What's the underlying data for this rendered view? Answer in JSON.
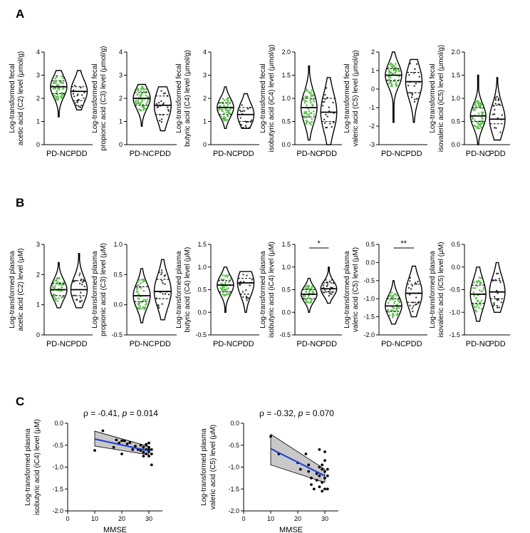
{
  "panel_labels": [
    "A",
    "B",
    "C"
  ],
  "colors": {
    "pdnc_dots": "#5bbf4a",
    "pdd_dots": "#333333",
    "regression": "#1f3fd6",
    "ci_band": "#c8c8c8"
  },
  "chart_data": [
    {
      "id": "A1",
      "type": "violin",
      "ylabel_lines": [
        "Log-transformed fecal",
        "acetic acid (C2) level (μmol/g)"
      ],
      "categories": [
        "PD-NC",
        "PDD"
      ],
      "ylim": [
        0,
        4
      ],
      "yticks": [
        0,
        1,
        2,
        3,
        4
      ],
      "tick_labels": [
        "0",
        "1",
        "2",
        "3",
        "4"
      ],
      "series": [
        {
          "name": "PD-NC",
          "min": 1.2,
          "max": 3.2,
          "q1": 2.2,
          "median": 2.5,
          "q3": 2.75,
          "n": 60
        },
        {
          "name": "PDD",
          "min": 1.5,
          "max": 3.2,
          "q1": 1.9,
          "median": 2.3,
          "q3": 2.5,
          "n": 20
        }
      ]
    },
    {
      "id": "A2",
      "type": "violin",
      "ylabel_lines": [
        "Log-transformed fecal",
        "propionic acid (C3) level (μmol/g)"
      ],
      "categories": [
        "PD-NC",
        "PDD"
      ],
      "ylim": [
        0,
        4
      ],
      "yticks": [
        0,
        1,
        2,
        3,
        4
      ],
      "tick_labels": [
        "0",
        "1",
        "2",
        "3",
        "4"
      ],
      "series": [
        {
          "name": "PD-NC",
          "min": 0.8,
          "max": 2.6,
          "q1": 1.7,
          "median": 2.0,
          "q3": 2.25,
          "n": 60
        },
        {
          "name": "PDD",
          "min": 0.6,
          "max": 2.5,
          "q1": 1.3,
          "median": 1.7,
          "q3": 2.1,
          "n": 20
        }
      ]
    },
    {
      "id": "A3",
      "type": "violin",
      "ylabel_lines": [
        "Log-transformed fecal",
        "butyric acid (C4) level (μmol/g)"
      ],
      "categories": [
        "PD-NC",
        "PDD"
      ],
      "ylim": [
        0,
        4
      ],
      "yticks": [
        0,
        1,
        2,
        3,
        4
      ],
      "tick_labels": [
        "0",
        "1",
        "2",
        "3",
        "4"
      ],
      "series": [
        {
          "name": "PD-NC",
          "min": 0.7,
          "max": 2.5,
          "q1": 1.3,
          "median": 1.6,
          "q3": 1.8,
          "n": 60
        },
        {
          "name": "PDD",
          "min": 0.7,
          "max": 2.2,
          "q1": 1.0,
          "median": 1.3,
          "q3": 1.6,
          "n": 20
        }
      ]
    },
    {
      "id": "A4",
      "type": "violin",
      "ylabel_lines": [
        "Log-transformed fecal",
        "isobutyric acid (iC4) level (μmol/g)"
      ],
      "categories": [
        "PD-NC",
        "PDD"
      ],
      "ylim": [
        0,
        2.0
      ],
      "yticks": [
        0,
        0.5,
        1.0,
        1.5,
        2.0
      ],
      "tick_labels": [
        "0.0",
        "0.5",
        "1.0",
        "1.5",
        "2.0"
      ],
      "series": [
        {
          "name": "PD-NC",
          "min": 0.1,
          "max": 1.7,
          "q1": 0.6,
          "median": 0.8,
          "q3": 1.0,
          "n": 60
        },
        {
          "name": "PDD",
          "min": 0.0,
          "max": 1.45,
          "q1": 0.5,
          "median": 0.7,
          "q3": 1.0,
          "n": 20
        }
      ]
    },
    {
      "id": "A5",
      "type": "violin",
      "ylabel_lines": [
        "Log-transformed fecal",
        "valeric acid (C5) level (μmol/g)"
      ],
      "categories": [
        "PD-NC",
        "PDD"
      ],
      "ylim": [
        -3,
        2
      ],
      "yticks": [
        -3,
        -2,
        -1,
        0,
        1,
        2
      ],
      "tick_labels": [
        "-3",
        "-2",
        "-1",
        "0",
        "1",
        "2"
      ],
      "series": [
        {
          "name": "PD-NC",
          "min": -1.8,
          "max": 2.0,
          "q1": 0.45,
          "median": 0.75,
          "q3": 1.1,
          "n": 60
        },
        {
          "name": "PDD",
          "min": -1.8,
          "max": 1.6,
          "q1": -0.2,
          "median": 0.4,
          "q3": 0.9,
          "n": 20
        }
      ]
    },
    {
      "id": "A6",
      "type": "violin",
      "ylabel_lines": [
        "Log-transformed fecal",
        "isovaleric acid (iC5) level (μmol/g)"
      ],
      "categories": [
        "PD-NC",
        "PDD"
      ],
      "ylim": [
        0,
        2.0
      ],
      "yticks": [
        0,
        0.5,
        1.0,
        1.5,
        2.0
      ],
      "tick_labels": [
        "0.0",
        "0.5",
        "1.0",
        "1.5",
        "2.0"
      ],
      "series": [
        {
          "name": "PD-NC",
          "min": 0.0,
          "max": 1.5,
          "q1": 0.5,
          "median": 0.62,
          "q3": 0.8,
          "n": 60
        },
        {
          "name": "PDD",
          "min": 0.1,
          "max": 1.45,
          "q1": 0.45,
          "median": 0.55,
          "q3": 0.85,
          "n": 20
        }
      ]
    },
    {
      "id": "B1",
      "type": "violin",
      "ylabel_lines": [
        "Log-transformed plasma",
        "acetic acid (C2) level (μM)"
      ],
      "categories": [
        "PD-NC",
        "PDD"
      ],
      "ylim": [
        0,
        3
      ],
      "yticks": [
        0,
        1,
        2,
        3
      ],
      "tick_labels": [
        "0",
        "1",
        "2",
        "3"
      ],
      "series": [
        {
          "name": "PD-NC",
          "min": 0.9,
          "max": 2.4,
          "q1": 1.3,
          "median": 1.5,
          "q3": 1.7,
          "n": 45
        },
        {
          "name": "PDD",
          "min": 0.9,
          "max": 2.7,
          "q1": 1.3,
          "median": 1.5,
          "q3": 1.8,
          "n": 20
        }
      ]
    },
    {
      "id": "B2",
      "type": "violin",
      "ylabel_lines": [
        "Log-transformed plasma",
        "propionic acid (C3) level (μM)"
      ],
      "categories": [
        "PD-NC",
        "PDD"
      ],
      "ylim": [
        -0.5,
        1.0
      ],
      "yticks": [
        -0.5,
        0,
        0.5,
        1.0
      ],
      "tick_labels": [
        "-0.5",
        "0.0",
        "0.5",
        "1.0"
      ],
      "series": [
        {
          "name": "PD-NC",
          "min": -0.3,
          "max": 0.6,
          "q1": 0.05,
          "median": 0.15,
          "q3": 0.3,
          "n": 45
        },
        {
          "name": "PDD",
          "min": -0.25,
          "max": 0.75,
          "q1": 0.1,
          "median": 0.22,
          "q3": 0.42,
          "n": 20
        }
      ]
    },
    {
      "id": "B3",
      "type": "violin",
      "ylabel_lines": [
        "Log-transformed plasma",
        "butyric acid (C4) level (μM)"
      ],
      "categories": [
        "PD-NC",
        "PDD"
      ],
      "ylim": [
        -0.5,
        1.5
      ],
      "yticks": [
        -0.5,
        0,
        0.5,
        1.0,
        1.5
      ],
      "tick_labels": [
        "-0.5",
        "0.0",
        "0.5",
        "1.0",
        "1.5"
      ],
      "series": [
        {
          "name": "PD-NC",
          "min": 0.0,
          "max": 1.0,
          "q1": 0.45,
          "median": 0.6,
          "q3": 0.7,
          "n": 45
        },
        {
          "name": "PDD",
          "min": 0.0,
          "max": 0.9,
          "q1": 0.4,
          "median": 0.65,
          "q3": 0.75,
          "n": 20
        }
      ]
    },
    {
      "id": "B4",
      "type": "violin",
      "ylabel_lines": [
        "Log-transformed plasma",
        "isobutyric acid (iC4) level (μM)"
      ],
      "categories": [
        "PD-NC",
        "PDD"
      ],
      "ylim": [
        -0.5,
        1.5
      ],
      "yticks": [
        -0.5,
        0,
        0.5,
        1.0,
        1.5
      ],
      "tick_labels": [
        "-0.5",
        "0.0",
        "0.5",
        "1.0",
        "1.5"
      ],
      "significance": "*",
      "series": [
        {
          "name": "PD-NC",
          "min": 0.0,
          "max": 0.75,
          "q1": 0.3,
          "median": 0.4,
          "q3": 0.5,
          "n": 45
        },
        {
          "name": "PDD",
          "min": 0.2,
          "max": 1.0,
          "q1": 0.45,
          "median": 0.52,
          "q3": 0.65,
          "n": 20
        }
      ]
    },
    {
      "id": "B5",
      "type": "violin",
      "ylabel_lines": [
        "Log-transformed plasma",
        "valeric acid (C5) level (μM)"
      ],
      "categories": [
        "PD-NC",
        "PDD"
      ],
      "ylim": [
        -2.0,
        0.5
      ],
      "yticks": [
        -2.0,
        -1.5,
        -1.0,
        -0.5,
        0,
        0.5
      ],
      "tick_labels": [
        "-2.0",
        "-1.5",
        "-1.0",
        "-0.5",
        "0.0",
        "0.5"
      ],
      "significance": "**",
      "series": [
        {
          "name": "PD-NC",
          "min": -1.7,
          "max": -0.5,
          "q1": -1.35,
          "median": -1.2,
          "q3": -1.0,
          "n": 45
        },
        {
          "name": "PDD",
          "min": -1.5,
          "max": -0.1,
          "q1": -1.1,
          "median": -0.85,
          "q3": -0.6,
          "n": 20
        }
      ]
    },
    {
      "id": "B6",
      "type": "violin",
      "ylabel_lines": [
        "Log-transformed plasma",
        "isovaleric acid (iC5) level (μM)"
      ],
      "categories": [
        "PD-NC",
        "PDD"
      ],
      "ylim": [
        -1.5,
        0.5
      ],
      "yticks": [
        -1.5,
        -1.0,
        -0.5,
        0,
        0.5
      ],
      "tick_labels": [
        "-1.5",
        "-1.0",
        "-0.5",
        "0.0",
        "0.5"
      ],
      "series": [
        {
          "name": "PD-NC",
          "min": -1.2,
          "max": 0.0,
          "q1": -0.8,
          "median": -0.6,
          "q3": -0.4,
          "n": 45
        },
        {
          "name": "PDD",
          "min": -1.0,
          "max": 0.1,
          "q1": -0.7,
          "median": -0.55,
          "q3": -0.3,
          "n": 20
        }
      ]
    },
    {
      "id": "C1",
      "type": "scatter",
      "stats_prefix": "ρ = -0.41, ",
      "p_label": "p",
      "stats_suffix": " = 0.014",
      "ylabel_lines": [
        "Log-transformed plasma",
        "isobutyric acid (iC4) level (μM)"
      ],
      "xlabel": "MMSE",
      "xlim": [
        0,
        35
      ],
      "xticks": [
        0,
        10,
        20,
        30
      ],
      "ylim": [
        -2.0,
        0.0
      ],
      "yticks": [
        -2.0,
        -1.5,
        -1.0,
        -0.5,
        0.0
      ],
      "tick_labels": [
        "-2.0",
        "-1.5",
        "-1.0",
        "-0.5",
        "0.0"
      ],
      "fit": {
        "x0": 10,
        "y0": -0.36,
        "x1": 30,
        "y1": -0.63
      },
      "ci": {
        "lo0": -0.52,
        "hi0": -0.18,
        "lo1": -0.72,
        "hi1": -0.53
      },
      "points": [
        [
          10,
          -0.62
        ],
        [
          13,
          -0.17
        ],
        [
          18,
          -0.38
        ],
        [
          19,
          -0.45
        ],
        [
          20,
          -0.4
        ],
        [
          21,
          -0.4
        ],
        [
          22,
          -0.47
        ],
        [
          23,
          -0.44
        ],
        [
          24,
          -0.6
        ],
        [
          25,
          -0.52
        ],
        [
          26,
          -0.6
        ],
        [
          27,
          -0.5
        ],
        [
          27,
          -0.62
        ],
        [
          28,
          -0.55
        ],
        [
          28,
          -0.66
        ],
        [
          28,
          -0.75
        ],
        [
          29,
          -0.5
        ],
        [
          29,
          -0.6
        ],
        [
          29,
          -0.7
        ],
        [
          29,
          -0.48
        ],
        [
          30,
          -0.55
        ],
        [
          30,
          -0.65
        ],
        [
          30,
          -0.75
        ],
        [
          30,
          -0.45
        ],
        [
          30,
          -0.6
        ],
        [
          31,
          -0.7
        ],
        [
          31,
          -0.6
        ],
        [
          31,
          -0.95
        ],
        [
          20,
          -0.7
        ],
        [
          17,
          -0.55
        ]
      ]
    },
    {
      "id": "C2",
      "type": "scatter",
      "stats_prefix": "ρ = -0.32, ",
      "p_label": "p",
      "stats_suffix": " = 0.070",
      "ylabel_lines": [
        "Log-transformed plasma",
        "valeric acid (C5) level (μM)"
      ],
      "xlabel": "MMSE",
      "xlim": [
        0,
        35
      ],
      "xticks": [
        0,
        10,
        20,
        30
      ],
      "ylim": [
        -2.0,
        0.0
      ],
      "yticks": [
        -2.0,
        -1.5,
        -1.0,
        -0.5,
        0.0
      ],
      "tick_labels": [
        "-2.0",
        "-1.5",
        "-1.0",
        "-0.5",
        "0.0"
      ],
      "fit": {
        "x0": 10,
        "y0": -0.58,
        "x1": 30,
        "y1": -1.2
      },
      "ci": {
        "lo0": -0.95,
        "hi0": -0.25,
        "lo1": -1.35,
        "hi1": -1.05
      },
      "points": [
        [
          10,
          -0.3
        ],
        [
          13,
          -0.7
        ],
        [
          20,
          -0.9
        ],
        [
          21,
          -1.05
        ],
        [
          23,
          -0.7
        ],
        [
          24,
          -1.1
        ],
        [
          25,
          -1.25
        ],
        [
          25,
          -1.4
        ],
        [
          26,
          -1.5
        ],
        [
          27,
          -1.3
        ],
        [
          27,
          -1.15
        ],
        [
          28,
          -0.6
        ],
        [
          28,
          -1.0
        ],
        [
          28,
          -1.2
        ],
        [
          28,
          -1.45
        ],
        [
          29,
          -0.95
        ],
        [
          29,
          -1.05
        ],
        [
          29,
          -1.35
        ],
        [
          29,
          -1.55
        ],
        [
          30,
          -0.65
        ],
        [
          30,
          -1.1
        ],
        [
          30,
          -1.25
        ],
        [
          30,
          -1.5
        ],
        [
          30,
          -0.85
        ],
        [
          31,
          -1.2
        ],
        [
          31,
          -1.5
        ],
        [
          31,
          -1.05
        ],
        [
          24,
          -0.95
        ]
      ]
    }
  ]
}
